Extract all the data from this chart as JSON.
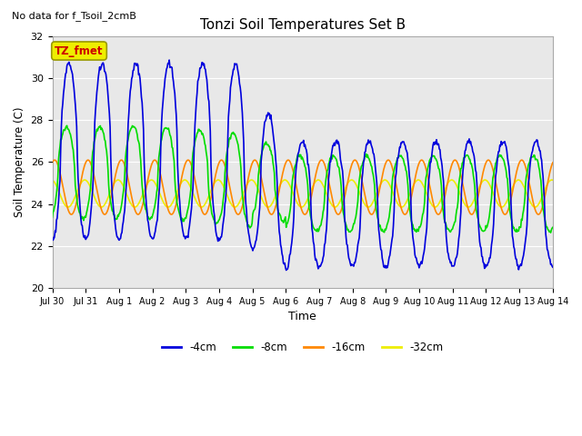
{
  "title": "Tonzi Soil Temperatures Set B",
  "subtitle": "No data for f_Tsoil_2cmB",
  "xlabel": "Time",
  "ylabel": "Soil Temperature (C)",
  "ylim": [
    20,
    32
  ],
  "yticks": [
    20,
    22,
    24,
    26,
    28,
    30,
    32
  ],
  "tick_labels": [
    "Jul 30",
    "Jul 31",
    "Aug 1",
    "Aug 2",
    "Aug 3",
    "Aug 4",
    "Aug 5",
    "Aug 6",
    "Aug 7",
    "Aug 8",
    "Aug 9",
    "Aug 10",
    "Aug 11",
    "Aug 12",
    "Aug 13",
    "Aug 14"
  ],
  "legend_labels": [
    "-4cm",
    "-8cm",
    "-16cm",
    "-32cm"
  ],
  "legend_colors": [
    "#0000dd",
    "#00dd00",
    "#ff8800",
    "#eeee00"
  ],
  "tz_fmet_box_color": "#eeee00",
  "tz_fmet_text_color": "#cc0000",
  "bg_color": "#e8e8e8",
  "grid_color": "#ffffff",
  "n_days": 15,
  "pts_per_day": 48
}
